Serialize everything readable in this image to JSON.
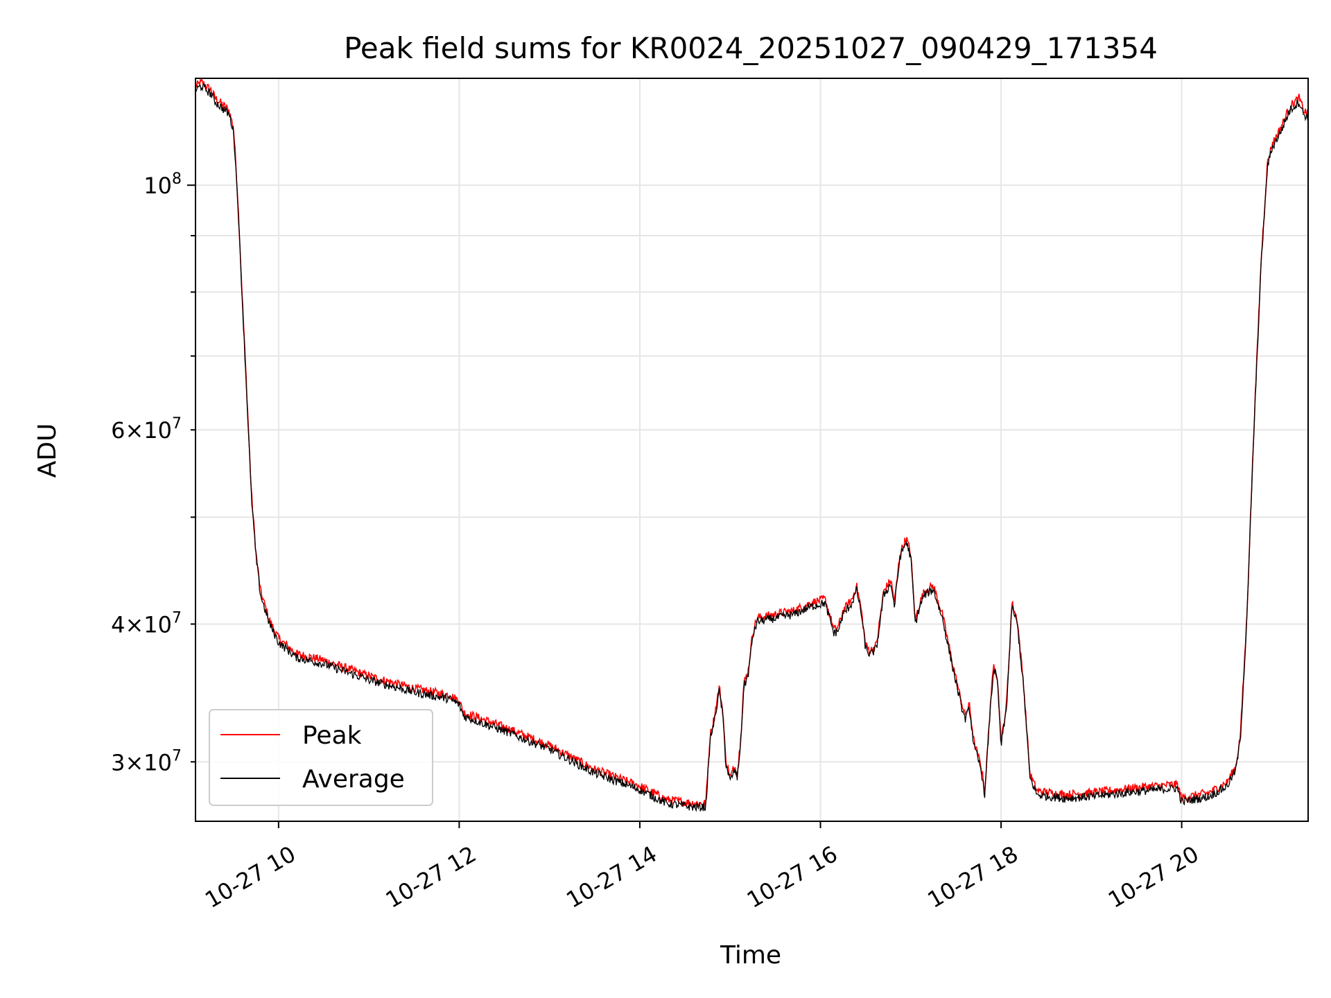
{
  "chart_data": {
    "type": "line",
    "title": "Peak field sums for KR0024_20251027_090429_171354",
    "xlabel": "Time",
    "ylabel": "ADU",
    "yscale": "log",
    "ylim": [
      26500000,
      125000000
    ],
    "xlim_hours": [
      9.08,
      21.4
    ],
    "grid": true,
    "legend_position": "lower-left",
    "x_ticks": [
      {
        "hour": 10,
        "label": "10-27 10"
      },
      {
        "hour": 12,
        "label": "10-27 12"
      },
      {
        "hour": 14,
        "label": "10-27 14"
      },
      {
        "hour": 16,
        "label": "10-27 16"
      },
      {
        "hour": 18,
        "label": "10-27 18"
      },
      {
        "hour": 20,
        "label": "10-27 20"
      }
    ],
    "y_ticks_major": [
      {
        "value": 100000000,
        "base": "10",
        "exp": "8"
      }
    ],
    "y_ticks_minor": [
      {
        "value": 30000000,
        "mant": "3",
        "exp": "7"
      },
      {
        "value": 40000000,
        "mant": "4",
        "exp": "7"
      },
      {
        "value": 60000000,
        "mant": "6",
        "exp": "7"
      }
    ],
    "y_minor_unlabeled": [
      50000000,
      70000000,
      80000000,
      90000000
    ],
    "series": [
      {
        "name": "Peak",
        "color": "#ff0000",
        "offset_factor": 1.008
      },
      {
        "name": "Average",
        "color": "#000000",
        "offset_factor": 1.0
      }
    ],
    "average_points": [
      [
        9.08,
        122000000
      ],
      [
        9.15,
        123000000
      ],
      [
        9.25,
        121000000
      ],
      [
        9.3,
        119000000
      ],
      [
        9.4,
        117000000
      ],
      [
        9.45,
        116000000
      ],
      [
        9.5,
        112000000
      ],
      [
        9.52,
        106000000
      ],
      [
        9.55,
        96000000
      ],
      [
        9.6,
        78000000
      ],
      [
        9.65,
        64000000
      ],
      [
        9.7,
        52000000
      ],
      [
        9.75,
        46000000
      ],
      [
        9.8,
        42500000
      ],
      [
        9.9,
        40000000
      ],
      [
        10.0,
        38500000
      ],
      [
        10.2,
        37300000
      ],
      [
        10.5,
        36800000
      ],
      [
        11.0,
        35600000
      ],
      [
        11.5,
        34700000
      ],
      [
        11.9,
        34200000
      ],
      [
        12.0,
        33800000
      ],
      [
        12.05,
        33000000
      ],
      [
        12.5,
        32000000
      ],
      [
        13.0,
        30800000
      ],
      [
        13.5,
        29300000
      ],
      [
        14.0,
        28300000
      ],
      [
        14.3,
        27500000
      ],
      [
        14.6,
        27300000
      ],
      [
        14.73,
        27300000
      ],
      [
        14.78,
        31500000
      ],
      [
        14.82,
        32500000
      ],
      [
        14.88,
        34800000
      ],
      [
        14.92,
        33000000
      ],
      [
        14.95,
        30000000
      ],
      [
        15.0,
        28800000
      ],
      [
        15.05,
        29500000
      ],
      [
        15.08,
        29000000
      ],
      [
        15.12,
        31500000
      ],
      [
        15.15,
        35000000
      ],
      [
        15.2,
        36000000
      ],
      [
        15.25,
        39000000
      ],
      [
        15.3,
        40200000
      ],
      [
        15.5,
        40500000
      ],
      [
        15.7,
        40800000
      ],
      [
        15.9,
        41500000
      ],
      [
        16.05,
        41800000
      ],
      [
        16.1,
        40500000
      ],
      [
        16.15,
        39200000
      ],
      [
        16.2,
        39500000
      ],
      [
        16.25,
        40800000
      ],
      [
        16.35,
        41800000
      ],
      [
        16.4,
        43000000
      ],
      [
        16.45,
        41000000
      ],
      [
        16.5,
        38000000
      ],
      [
        16.55,
        37500000
      ],
      [
        16.62,
        38000000
      ],
      [
        16.7,
        42500000
      ],
      [
        16.78,
        43500000
      ],
      [
        16.82,
        41500000
      ],
      [
        16.88,
        46000000
      ],
      [
        16.95,
        47500000
      ],
      [
        17.0,
        46000000
      ],
      [
        17.05,
        40000000
      ],
      [
        17.1,
        41500000
      ],
      [
        17.15,
        42500000
      ],
      [
        17.25,
        43000000
      ],
      [
        17.35,
        40500000
      ],
      [
        17.45,
        37000000
      ],
      [
        17.55,
        34000000
      ],
      [
        17.6,
        32800000
      ],
      [
        17.65,
        33500000
      ],
      [
        17.7,
        31000000
      ],
      [
        17.78,
        29500000
      ],
      [
        17.82,
        28000000
      ],
      [
        17.88,
        33500000
      ],
      [
        17.92,
        36500000
      ],
      [
        17.96,
        35500000
      ],
      [
        18.0,
        31000000
      ],
      [
        18.06,
        33500000
      ],
      [
        18.12,
        41500000
      ],
      [
        18.18,
        40000000
      ],
      [
        18.25,
        35000000
      ],
      [
        18.32,
        29000000
      ],
      [
        18.4,
        28000000
      ],
      [
        18.7,
        27800000
      ],
      [
        19.0,
        27900000
      ],
      [
        19.5,
        28200000
      ],
      [
        19.95,
        28400000
      ],
      [
        20.0,
        27600000
      ],
      [
        20.3,
        27900000
      ],
      [
        20.5,
        28500000
      ],
      [
        20.6,
        29500000
      ],
      [
        20.65,
        31500000
      ],
      [
        20.72,
        40000000
      ],
      [
        20.8,
        60000000
      ],
      [
        20.88,
        85000000
      ],
      [
        20.95,
        104000000
      ],
      [
        21.0,
        108000000
      ],
      [
        21.1,
        112000000
      ],
      [
        21.2,
        117000000
      ],
      [
        21.3,
        119000000
      ],
      [
        21.35,
        116000000
      ],
      [
        21.4,
        115000000
      ]
    ]
  }
}
